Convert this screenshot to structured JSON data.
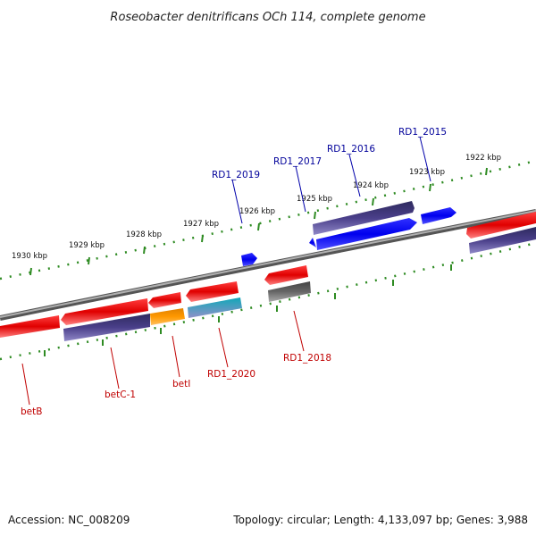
{
  "title": "Roseobacter denitrificans OCh 114, complete genome",
  "footer": {
    "accession": "Accession: NC_008209",
    "topology": "Topology: circular; Length: 4,133,097 bp; Genes: 3,988"
  },
  "colors": {
    "backbone": "#8a8a8a",
    "tick": "#2e8b22",
    "forward_gene": "#e00000",
    "forward_cds": "#0000ee",
    "reverse_cds": "#4a3f8a",
    "other": "#ff9900",
    "rna": "#22b8c8",
    "pseudo": "#666666",
    "label_forward": "#00009a",
    "label_reverse": "#c00000"
  },
  "ticks": [
    "1930 kbp",
    "1929 kbp",
    "1928 kbp",
    "1927 kbp",
    "1926 kbp",
    "1925 kbp",
    "1924 kbp",
    "1923 kbp",
    "1922 kbp"
  ],
  "labels_top": [
    "RD1_2019",
    "RD1_2017",
    "RD1_2016",
    "RD1_2015"
  ],
  "labels_bottom": [
    "betB",
    "betC-1",
    "betI",
    "RD1_2020",
    "RD1_2018"
  ]
}
